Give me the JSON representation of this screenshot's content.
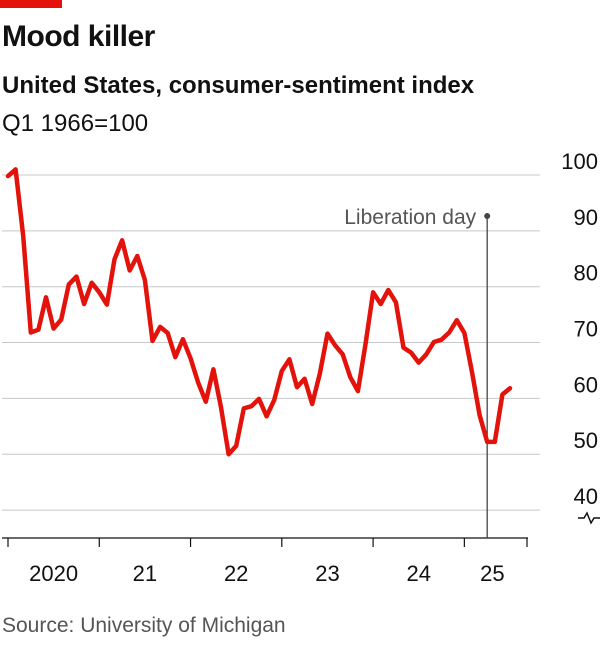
{
  "header": {
    "title": "Mood killer",
    "subtitle": "United States, consumer-sentiment index",
    "unit": "Q1 1966=100"
  },
  "source": "Source: University of Michigan",
  "colors": {
    "accent": "#e3120b",
    "line": "#e3120b",
    "grid": "#c8c8c8",
    "annotation": "#555555"
  },
  "chart_data": {
    "type": "line",
    "title": "Mood killer",
    "subtitle": "United States, consumer-sentiment index",
    "ylabel": "Q1 1966=100",
    "ylim": [
      35,
      100
    ],
    "yticks": [
      40,
      50,
      60,
      70,
      80,
      90,
      100
    ],
    "y_axis_side": "right",
    "y_axis_break_below": 40,
    "xlim": [
      "2020-01",
      "2025-07"
    ],
    "xticks": [
      {
        "value": "2020-01",
        "label": "2020"
      },
      {
        "value": "2021-01",
        "label": "21"
      },
      {
        "value": "2022-01",
        "label": "22"
      },
      {
        "value": "2023-01",
        "label": "23"
      },
      {
        "value": "2024-01",
        "label": "24"
      },
      {
        "value": "2025-01",
        "label": "25"
      }
    ],
    "grid": true,
    "annotations": [
      {
        "x": "2025-04",
        "text": "Liberation day"
      }
    ],
    "series": [
      {
        "x": [
          "2020-01",
          "2020-02",
          "2020-03",
          "2020-04",
          "2020-05",
          "2020-06",
          "2020-07",
          "2020-08",
          "2020-09",
          "2020-10",
          "2020-11",
          "2020-12",
          "2021-01",
          "2021-02",
          "2021-03",
          "2021-04",
          "2021-05",
          "2021-06",
          "2021-07",
          "2021-08",
          "2021-09",
          "2021-10",
          "2021-11",
          "2021-12",
          "2022-01",
          "2022-02",
          "2022-03",
          "2022-04",
          "2022-05",
          "2022-06",
          "2022-07",
          "2022-08",
          "2022-09",
          "2022-10",
          "2022-11",
          "2022-12",
          "2023-01",
          "2023-02",
          "2023-03",
          "2023-04",
          "2023-05",
          "2023-06",
          "2023-07",
          "2023-08",
          "2023-09",
          "2023-10",
          "2023-11",
          "2023-12",
          "2024-01",
          "2024-02",
          "2024-03",
          "2024-04",
          "2024-05",
          "2024-06",
          "2024-07",
          "2024-08",
          "2024-09",
          "2024-10",
          "2024-11",
          "2024-12",
          "2025-01",
          "2025-02",
          "2025-03",
          "2025-04",
          "2025-05",
          "2025-06",
          "2025-07"
        ],
        "values": [
          99.8,
          101.0,
          89.1,
          71.8,
          72.3,
          78.1,
          72.5,
          74.1,
          80.4,
          81.8,
          76.9,
          80.7,
          79.0,
          76.8,
          84.9,
          88.3,
          82.9,
          85.5,
          81.2,
          70.3,
          72.8,
          71.7,
          67.4,
          70.6,
          67.2,
          62.8,
          59.4,
          65.2,
          58.4,
          50.0,
          51.5,
          58.2,
          58.6,
          59.9,
          56.8,
          59.7,
          64.9,
          67.0,
          62.0,
          63.5,
          59.0,
          64.4,
          71.6,
          69.5,
          67.9,
          63.8,
          61.3,
          69.7,
          79.0,
          76.9,
          79.4,
          77.2,
          69.1,
          68.2,
          66.4,
          67.9,
          70.1,
          70.5,
          71.8,
          74.0,
          71.7,
          64.7,
          57.0,
          52.2,
          52.2,
          60.7,
          61.8
        ]
      }
    ]
  }
}
